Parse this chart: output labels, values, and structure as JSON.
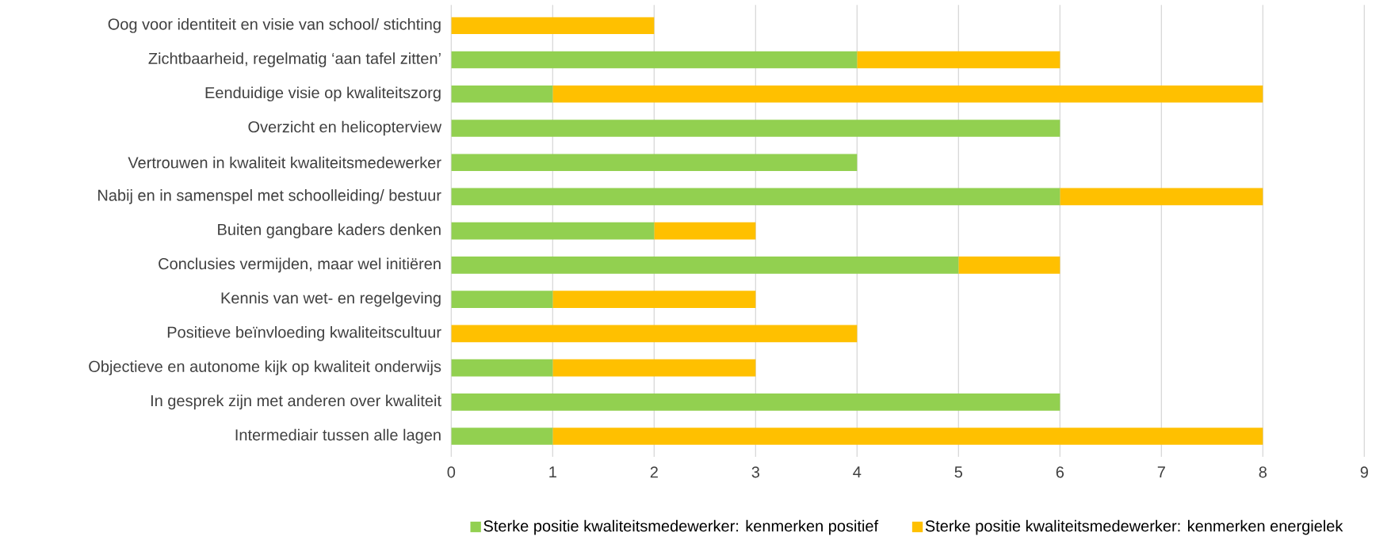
{
  "chart_data": {
    "type": "bar",
    "orientation": "horizontal",
    "stacked": true,
    "categories": [
      "Oog voor identiteit en  visie van school/ stichting",
      "Zichtbaarheid, regelmatig ‘aan tafel zitten’",
      "Eenduidige visie op kwaliteitszorg",
      "Overzicht en helicopterview",
      "Vertrouwen in kwaliteit kwaliteitsmedewerker",
      "Nabij en in samenspel met schoolleiding/ bestuur",
      "Buiten gangbare kaders denken",
      "Conclusies vermijden, maar wel initiëren",
      "Kennis van wet- en regelgeving",
      "Positieve beïnvloeding kwaliteitscultuur",
      "Objectieve en autonome kijk op kwaliteit onderwijs",
      "In gesprek zijn met anderen over kwaliteit",
      "Intermediair tussen alle lagen"
    ],
    "series": [
      {
        "name": "Sterke positie kwaliteitsmedewerker: kenmerken positief",
        "color": "#92d050",
        "values": [
          0,
          4,
          1,
          6,
          4,
          6,
          2,
          5,
          1,
          0,
          1,
          6,
          1
        ]
      },
      {
        "name": "Sterke positie kwaliteitsmedewerker: kenmerken energielek",
        "color": "#ffc000",
        "values": [
          2,
          2,
          7,
          0,
          0,
          2,
          1,
          1,
          2,
          4,
          2,
          0,
          7
        ]
      }
    ],
    "xlim": [
      0,
      9
    ],
    "xticks": [
      0,
      1,
      2,
      3,
      4,
      5,
      6,
      7,
      8,
      9
    ],
    "grid": "x",
    "legend": "bottom"
  }
}
